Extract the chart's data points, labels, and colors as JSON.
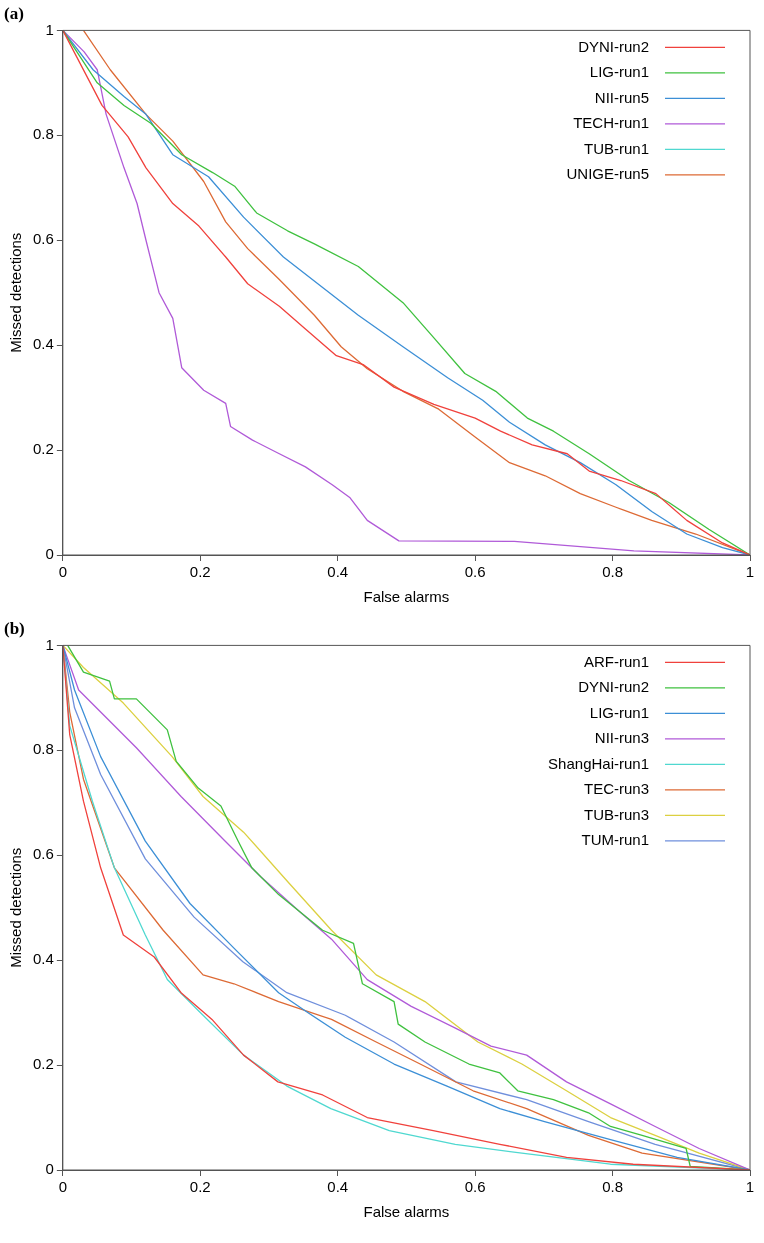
{
  "chart_data": [
    {
      "type": "line",
      "title": "(a)",
      "xlabel": "False alarms",
      "ylabel": "Missed detections",
      "xlim": [
        0,
        1
      ],
      "ylim": [
        0,
        1
      ],
      "xticks": [
        0,
        0.2,
        0.4,
        0.6,
        0.8,
        1
      ],
      "yticks": [
        0,
        0.2,
        0.4,
        0.6,
        0.8,
        1
      ],
      "grid": false,
      "legend": "top right",
      "marker": "none",
      "line_style": "solid",
      "series": [
        {
          "name": "DYNI-run2",
          "color": "#f0413c",
          "x": [
            0,
            0.057,
            0.095,
            0.121,
            0.16,
            0.198,
            0.237,
            0.269,
            0.315,
            0.353,
            0.398,
            0.437,
            0.482,
            0.54,
            0.6,
            0.637,
            0.683,
            0.734,
            0.766,
            0.812,
            0.863,
            0.908,
            0.96,
            1
          ],
          "values": [
            1,
            0.857,
            0.797,
            0.738,
            0.67,
            0.627,
            0.568,
            0.517,
            0.474,
            0.431,
            0.38,
            0.363,
            0.32,
            0.287,
            0.261,
            0.236,
            0.21,
            0.193,
            0.16,
            0.142,
            0.117,
            0.066,
            0.023,
            0
          ]
        },
        {
          "name": "LIG-run1",
          "color": "#3fc13f",
          "x": [
            0,
            0.05,
            0.089,
            0.128,
            0.173,
            0.218,
            0.25,
            0.282,
            0.327,
            0.366,
            0.43,
            0.495,
            0.54,
            0.585,
            0.63,
            0.676,
            0.714,
            0.766,
            0.824,
            0.882,
            0.94,
            1
          ],
          "values": [
            1,
            0.9,
            0.857,
            0.823,
            0.763,
            0.729,
            0.703,
            0.652,
            0.618,
            0.593,
            0.55,
            0.481,
            0.414,
            0.346,
            0.312,
            0.261,
            0.236,
            0.193,
            0.142,
            0.1,
            0.049,
            0
          ]
        },
        {
          "name": "NII-run5",
          "color": "#3c8fd6",
          "x": [
            0,
            0.044,
            0.089,
            0.121,
            0.16,
            0.212,
            0.263,
            0.321,
            0.379,
            0.43,
            0.495,
            0.56,
            0.611,
            0.65,
            0.702,
            0.753,
            0.805,
            0.857,
            0.908,
            0.96,
            1
          ],
          "values": [
            1,
            0.925,
            0.874,
            0.84,
            0.763,
            0.721,
            0.644,
            0.568,
            0.509,
            0.457,
            0.397,
            0.338,
            0.295,
            0.253,
            0.21,
            0.176,
            0.134,
            0.083,
            0.04,
            0.014,
            0
          ]
        },
        {
          "name": "TECH-run1",
          "color": "#b05ad8",
          "x": [
            0,
            0.031,
            0.05,
            0.063,
            0.089,
            0.108,
            0.121,
            0.14,
            0.16,
            0.173,
            0.205,
            0.237,
            0.244,
            0.276,
            0.315,
            0.353,
            0.392,
            0.418,
            0.443,
            0.489,
            0.657,
            0.831,
            1
          ],
          "values": [
            1,
            0.959,
            0.925,
            0.84,
            0.738,
            0.67,
            0.6,
            0.5,
            0.451,
            0.357,
            0.314,
            0.289,
            0.245,
            0.219,
            0.193,
            0.168,
            0.134,
            0.109,
            0.066,
            0.027,
            0.026,
            0.008,
            0
          ]
        },
        {
          "name": "TUB-run1",
          "color": "#4fd8d0"
        },
        {
          "name": "UNIGE-run5",
          "color": "#dd6a35",
          "x": [
            0.03,
            0.069,
            0.121,
            0.16,
            0.205,
            0.237,
            0.269,
            0.315,
            0.366,
            0.405,
            0.443,
            0.495,
            0.547,
            0.598,
            0.65,
            0.702,
            0.753,
            0.805,
            0.857,
            0.921,
            1
          ],
          "values": [
            1,
            0.925,
            0.84,
            0.789,
            0.712,
            0.635,
            0.584,
            0.525,
            0.457,
            0.397,
            0.355,
            0.312,
            0.278,
            0.227,
            0.176,
            0.151,
            0.117,
            0.091,
            0.066,
            0.04,
            0
          ]
        }
      ]
    },
    {
      "type": "line",
      "title": "(b)",
      "xlabel": "False alarms",
      "ylabel": "Missed detections",
      "xlim": [
        0,
        1
      ],
      "ylim": [
        0,
        1
      ],
      "xticks": [
        0,
        0.2,
        0.4,
        0.6,
        0.8,
        1
      ],
      "yticks": [
        0,
        0.2,
        0.4,
        0.6,
        0.8,
        1
      ],
      "grid": false,
      "legend": "top right",
      "marker": "none",
      "line_style": "solid",
      "series": [
        {
          "name": "ARF-run1",
          "color": "#f0413c",
          "x": [
            0,
            0.01,
            0.03,
            0.055,
            0.088,
            0.133,
            0.172,
            0.217,
            0.263,
            0.313,
            0.378,
            0.443,
            0.539,
            0.636,
            0.733,
            0.83,
            1
          ],
          "values": [
            1,
            0.83,
            0.703,
            0.576,
            0.448,
            0.406,
            0.338,
            0.287,
            0.219,
            0.168,
            0.143,
            0.1,
            0.075,
            0.049,
            0.024,
            0.011,
            0
          ]
        },
        {
          "name": "DYNI-run2",
          "color": "#3fc13f",
          "x": [
            0.007,
            0.03,
            0.068,
            0.075,
            0.107,
            0.152,
            0.165,
            0.197,
            0.23,
            0.255,
            0.275,
            0.314,
            0.378,
            0.423,
            0.436,
            0.482,
            0.488,
            0.527,
            0.591,
            0.636,
            0.662,
            0.714,
            0.765,
            0.797,
            0.843,
            0.907,
            0.913,
            1
          ],
          "values": [
            1,
            0.949,
            0.932,
            0.898,
            0.898,
            0.839,
            0.779,
            0.728,
            0.694,
            0.627,
            0.576,
            0.525,
            0.457,
            0.432,
            0.355,
            0.321,
            0.278,
            0.244,
            0.202,
            0.185,
            0.151,
            0.134,
            0.109,
            0.083,
            0.066,
            0.041,
            0.007,
            0
          ]
        },
        {
          "name": "LIG-run1",
          "color": "#3c8fd6",
          "x": [
            0,
            0.017,
            0.055,
            0.12,
            0.185,
            0.249,
            0.314,
            0.352,
            0.411,
            0.482,
            0.559,
            0.636,
            0.701,
            0.797,
            0.894,
            1
          ],
          "values": [
            1,
            0.915,
            0.788,
            0.627,
            0.508,
            0.423,
            0.338,
            0.304,
            0.253,
            0.202,
            0.16,
            0.117,
            0.092,
            0.058,
            0.024,
            0
          ]
        },
        {
          "name": "NII-run3",
          "color": "#b05ad8",
          "x": [
            0,
            0.023,
            0.055,
            0.107,
            0.172,
            0.236,
            0.288,
            0.346,
            0.391,
            0.443,
            0.507,
            0.572,
            0.623,
            0.675,
            0.733,
            0.797,
            0.862,
            0.926,
            1
          ],
          "values": [
            1,
            0.915,
            0.873,
            0.805,
            0.712,
            0.627,
            0.559,
            0.491,
            0.44,
            0.363,
            0.312,
            0.27,
            0.236,
            0.219,
            0.168,
            0.126,
            0.083,
            0.041,
            0
          ]
        },
        {
          "name": "ShangHai-run1",
          "color": "#4fd8d0",
          "x": [
            0,
            0.01,
            0.043,
            0.075,
            0.12,
            0.152,
            0.197,
            0.263,
            0.326,
            0.39,
            0.475,
            0.571,
            0.668,
            0.797,
            1
          ],
          "values": [
            1,
            0.847,
            0.703,
            0.576,
            0.448,
            0.363,
            0.304,
            0.219,
            0.16,
            0.117,
            0.075,
            0.049,
            0.032,
            0.011,
            0
          ]
        },
        {
          "name": "TEC-run3",
          "color": "#dd6a35",
          "x": [
            0,
            0.01,
            0.03,
            0.075,
            0.146,
            0.204,
            0.249,
            0.314,
            0.391,
            0.456,
            0.52,
            0.597,
            0.675,
            0.765,
            0.843,
            1
          ],
          "values": [
            1,
            0.873,
            0.745,
            0.576,
            0.457,
            0.372,
            0.355,
            0.321,
            0.287,
            0.244,
            0.202,
            0.151,
            0.117,
            0.066,
            0.032,
            0
          ]
        },
        {
          "name": "TUB-run3",
          "color": "#dcd040",
          "x": [
            0,
            0.03,
            0.088,
            0.159,
            0.204,
            0.263,
            0.327,
            0.391,
            0.456,
            0.527,
            0.604,
            0.668,
            0.733,
            0.797,
            0.862,
            0.926,
            1
          ],
          "values": [
            1,
            0.958,
            0.89,
            0.788,
            0.712,
            0.644,
            0.55,
            0.457,
            0.372,
            0.321,
            0.244,
            0.202,
            0.151,
            0.1,
            0.066,
            0.032,
            0
          ]
        },
        {
          "name": "TUM-run1",
          "color": "#6f8fdc",
          "x": [
            0,
            0.017,
            0.055,
            0.12,
            0.191,
            0.262,
            0.326,
            0.411,
            0.482,
            0.572,
            0.675,
            0.765,
            0.862,
            1
          ],
          "values": [
            1,
            0.881,
            0.754,
            0.593,
            0.482,
            0.397,
            0.338,
            0.295,
            0.244,
            0.168,
            0.134,
            0.092,
            0.049,
            0
          ]
        }
      ]
    }
  ]
}
